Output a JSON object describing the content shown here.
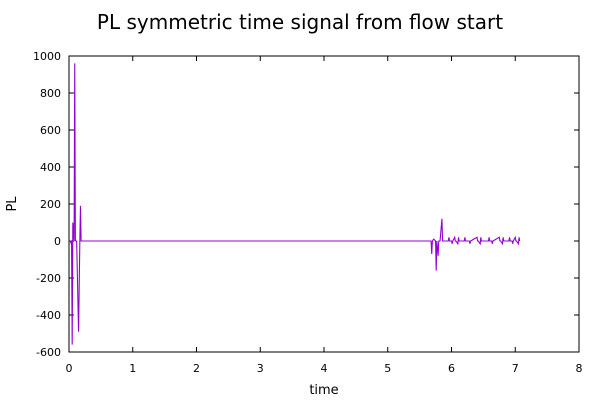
{
  "chart_data": {
    "type": "line",
    "title": "PL symmetric time signal from flow start",
    "xlabel": "time",
    "ylabel": "PL",
    "xlim": [
      0,
      8
    ],
    "ylim": [
      -600,
      1000
    ],
    "x_ticks": [
      "0",
      "1",
      "2",
      "3",
      "4",
      "5",
      "6",
      "7",
      "8"
    ],
    "y_ticks": [
      "-600",
      "-400",
      "-200",
      "0",
      "200",
      "400",
      "600",
      "800",
      "1000"
    ],
    "grid": false,
    "legend": "none",
    "series": [
      {
        "color": "#9400d3",
        "x": [
          0,
          0.02,
          0.03,
          0.04,
          0.05,
          0.06,
          0.08,
          0.09,
          0.1,
          0.12,
          0.15,
          0.17,
          0.18,
          0.19,
          0.3,
          5.5,
          5.68,
          5.69,
          5.7,
          5.72,
          5.75,
          5.76,
          5.77,
          5.79,
          5.8,
          5.82,
          5.85,
          5.86,
          5.87,
          5.95,
          5.96,
          5.97,
          6.0,
          6.01,
          6.02,
          6.05,
          6.06,
          6.07,
          6.1,
          6.11,
          6.12,
          6.2,
          6.21,
          6.22,
          6.28,
          6.29,
          6.3,
          6.4,
          6.41,
          6.42,
          6.45,
          6.46,
          6.47,
          6.58,
          6.59,
          6.6,
          6.63,
          6.64,
          6.65,
          6.75,
          6.76,
          6.77,
          6.8,
          6.81,
          6.82,
          6.9,
          6.91,
          6.92,
          6.95,
          6.96,
          6.97,
          7.0,
          7.01,
          7.02,
          7.05,
          7.06,
          7.07
        ],
        "y": [
          0,
          0,
          -10,
          0,
          -560,
          100,
          0,
          960,
          0,
          0,
          -490,
          0,
          190,
          0,
          0,
          0,
          0,
          -70,
          0,
          10,
          0,
          -160,
          0,
          -80,
          0,
          0,
          120,
          0,
          0,
          0,
          20,
          0,
          0,
          -15,
          0,
          20,
          0,
          0,
          -15,
          20,
          0,
          0,
          20,
          0,
          0,
          -15,
          0,
          20,
          0,
          0,
          -15,
          20,
          0,
          0,
          20,
          0,
          0,
          -15,
          0,
          20,
          0,
          0,
          -15,
          20,
          0,
          0,
          20,
          0,
          0,
          -15,
          0,
          20,
          0,
          0,
          -15,
          20,
          0
        ]
      }
    ]
  }
}
